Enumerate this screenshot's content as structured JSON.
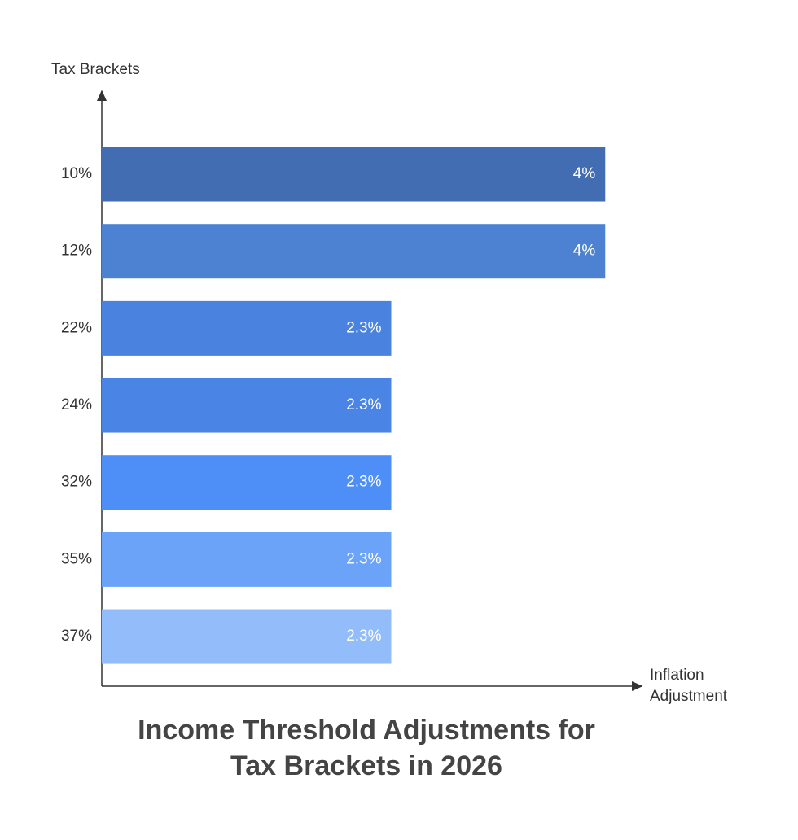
{
  "chart_data": {
    "type": "hbar",
    "title": [
      "Income Threshold Adjustments for",
      "Tax Brackets in 2026"
    ],
    "y_label": "Tax Brackets",
    "x_label": [
      "Inflation",
      "Adjustment"
    ],
    "categories": [
      "10%",
      "12%",
      "22%",
      "24%",
      "32%",
      "35%",
      "37%"
    ],
    "values": [
      4,
      4,
      2.3,
      2.3,
      2.3,
      2.3,
      2.3
    ],
    "value_labels": [
      "4%",
      "4%",
      "2.3%",
      "2.3%",
      "2.3%",
      "2.3%",
      "2.3%"
    ],
    "colors": [
      "#426db3",
      "#4d82d3",
      "#4a82df",
      "#4a85e6",
      "#4d8ff7",
      "#6aa3f7",
      "#93bcfa"
    ],
    "xlim": [
      0,
      4.27
    ]
  }
}
